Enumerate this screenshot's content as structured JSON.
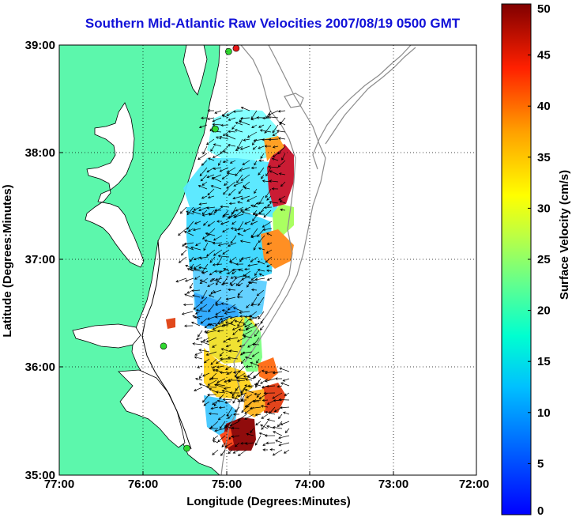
{
  "title": "Southern Mid-Atlantic Raw Velocities 2007/08/19 0500 GMT",
  "map": {
    "xlabel": "Longitude (Degrees:Minutes)",
    "ylabel": "Latitude (Degrees:Minutes)",
    "lon_range": [
      -77,
      -72
    ],
    "lat_range": [
      35,
      39
    ],
    "x_ticks": [
      {
        "value": -77,
        "label": "77:00"
      },
      {
        "value": -76,
        "label": "76:00"
      },
      {
        "value": -75,
        "label": "75:00"
      },
      {
        "value": -74,
        "label": "74:00"
      },
      {
        "value": -73,
        "label": "73:00"
      },
      {
        "value": -72,
        "label": "72:00"
      }
    ],
    "y_ticks": [
      {
        "value": 39,
        "label": "39:00"
      },
      {
        "value": 38,
        "label": "38:00"
      },
      {
        "value": 37,
        "label": "37:00"
      },
      {
        "value": 36,
        "label": "36:00"
      },
      {
        "value": 35,
        "label": "35:00"
      }
    ],
    "grid": "dotted",
    "colors": {
      "land": "#5cf7ac",
      "water": "#ffffff",
      "coastline": "#000000",
      "bathymetry": "#8c8c8c",
      "arrows": "#000000",
      "station_green": "#30d830",
      "station_red": "#e81818"
    },
    "stations": [
      {
        "lon": -74.88,
        "lat": 38.97,
        "color": "red"
      },
      {
        "lon": -74.97,
        "lat": 38.94,
        "color": "green"
      },
      {
        "lon": -75.13,
        "lat": 38.22,
        "color": "green"
      },
      {
        "lon": -75.75,
        "lat": 36.2,
        "color": "green"
      },
      {
        "lon": -75.47,
        "lat": 35.25,
        "color": "green"
      }
    ]
  },
  "colorbar": {
    "label": "Surface Velocity (cm/s)",
    "min": 0,
    "max": 50,
    "colormap": "jet",
    "ticks": [
      {
        "value": 0,
        "label": "0"
      },
      {
        "value": 5,
        "label": "5"
      },
      {
        "value": 10,
        "label": "10"
      },
      {
        "value": 15,
        "label": "15"
      },
      {
        "value": 20,
        "label": "20"
      },
      {
        "value": 25,
        "label": "25"
      },
      {
        "value": 30,
        "label": "30"
      },
      {
        "value": 35,
        "label": "35"
      },
      {
        "value": 40,
        "label": "40"
      },
      {
        "value": 45,
        "label": "45"
      },
      {
        "value": 50,
        "label": "50"
      }
    ]
  },
  "chart_data": {
    "type": "heatmap",
    "title": "Southern Mid-Atlantic Raw Velocities 2007/08/19 0500 GMT",
    "xlabel": "Longitude (Degrees:Minutes)",
    "ylabel": "Latitude (Degrees:Minutes)",
    "xlim": [
      -77,
      -72
    ],
    "ylim": [
      35,
      39
    ],
    "value_label": "Surface Velocity (cm/s)",
    "value_range": [
      0,
      50
    ],
    "grid": true,
    "regions": [
      {
        "name": "",
        "lon": [
          -75.3,
          -74.8
        ],
        "lat": [
          37.95,
          38.4
        ],
        "speed": 14
      },
      {
        "name": "",
        "lon": [
          -75.55,
          -74.95
        ],
        "lat": [
          37.3,
          37.95
        ],
        "speed": 10
      },
      {
        "name": "",
        "lon": [
          -74.55,
          -74.3
        ],
        "lat": [
          37.55,
          38.0
        ],
        "speed": 44
      },
      {
        "name": "",
        "lon": [
          -74.75,
          -74.45
        ],
        "lat": [
          37.3,
          37.65
        ],
        "speed": 20
      },
      {
        "name": "",
        "lon": [
          -74.75,
          -74.35
        ],
        "lat": [
          36.8,
          37.2
        ],
        "speed": 32
      },
      {
        "name": "",
        "lon": [
          -75.15,
          -74.75
        ],
        "lat": [
          36.7,
          37.2
        ],
        "speed": 14
      },
      {
        "name": "",
        "lon": [
          -75.3,
          -74.9
        ],
        "lat": [
          36.15,
          36.75
        ],
        "speed": 8
      },
      {
        "name": "",
        "lon": [
          -75.05,
          -74.65
        ],
        "lat": [
          35.8,
          36.4
        ],
        "speed": 22
      },
      {
        "name": "",
        "lon": [
          -74.75,
          -74.45
        ],
        "lat": [
          35.6,
          35.95
        ],
        "speed": 34
      },
      {
        "name": "",
        "lon": [
          -75.0,
          -74.7
        ],
        "lat": [
          35.15,
          35.45
        ],
        "speed": 48
      },
      {
        "name": "",
        "lon": [
          -75.3,
          -74.95
        ],
        "lat": [
          35.35,
          35.8
        ],
        "speed": 16
      }
    ]
  }
}
